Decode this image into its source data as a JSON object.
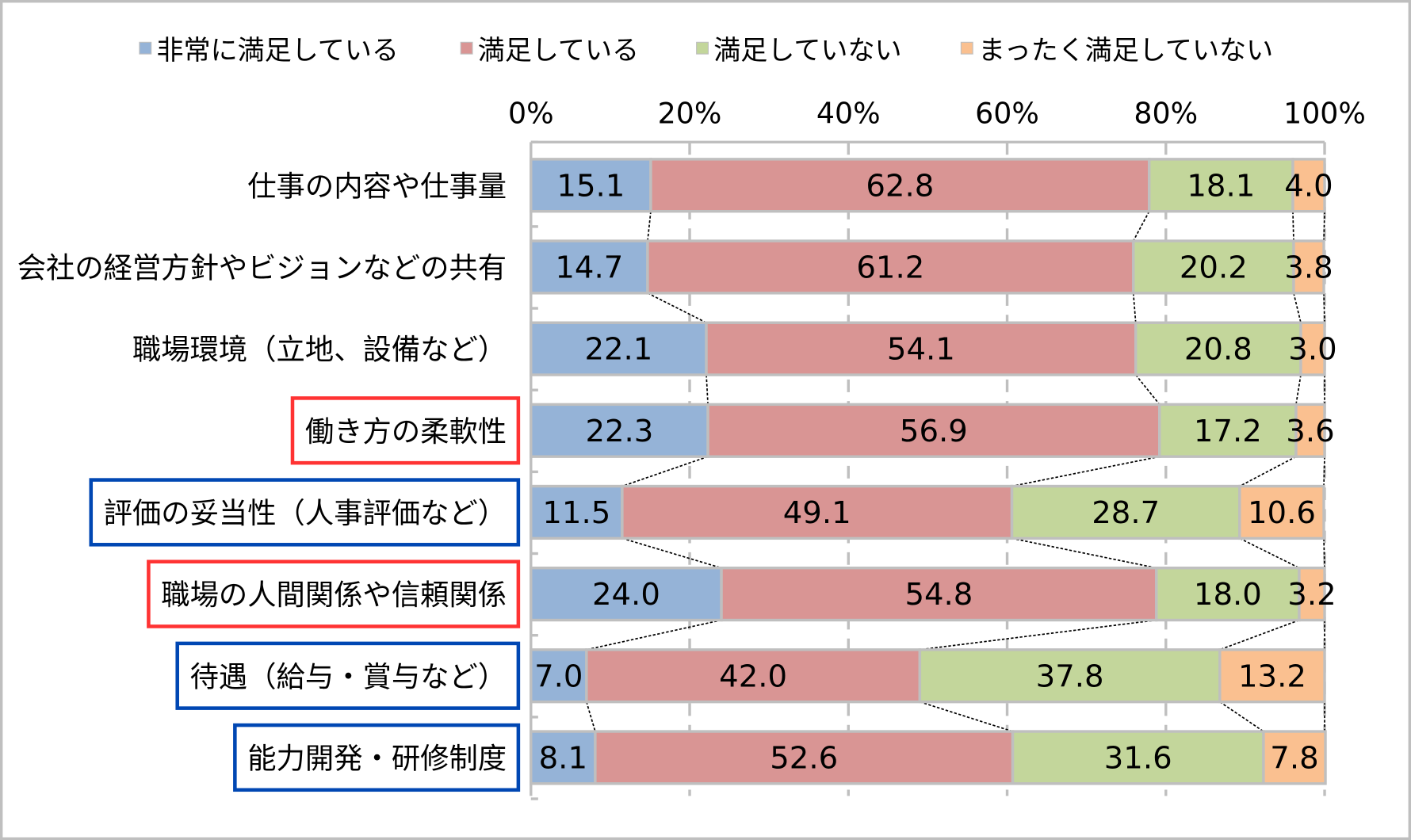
{
  "chart_data": {
    "type": "bar",
    "orientation": "horizontal",
    "stacked": "percent",
    "title": "",
    "xlabel": "",
    "ylabel": "",
    "xlim": [
      0,
      100
    ],
    "x_ticks": [
      "0%",
      "20%",
      "40%",
      "60%",
      "80%",
      "100%"
    ],
    "grid": true,
    "legend_position": "top",
    "categories": [
      "仕事の内容や仕事量",
      "会社の経営方針やビジョンなどの共有",
      "職場環境（立地、設備など）",
      "働き方の柔軟性",
      "評価の妥当性（人事評価など）",
      "職場の人間関係や信頼関係",
      "待遇（給与・賞与など）",
      "能力開発・研修制度"
    ],
    "highlight": [
      "none",
      "none",
      "none",
      "red",
      "blue",
      "red",
      "blue",
      "blue"
    ],
    "highlight_colors": {
      "red": "#ff3333",
      "blue": "#0047b3"
    },
    "series": [
      {
        "name": "非常に満足している",
        "color": "#95b3d7",
        "values": [
          15.1,
          14.7,
          22.1,
          22.3,
          11.5,
          24.0,
          7.0,
          8.1
        ]
      },
      {
        "name": "満足している",
        "color": "#d99594",
        "values": [
          62.8,
          61.2,
          54.1,
          56.9,
          49.1,
          54.8,
          42.0,
          52.6
        ]
      },
      {
        "name": "満足していない",
        "color": "#c3d69b",
        "values": [
          18.1,
          20.2,
          20.8,
          17.2,
          28.7,
          18.0,
          37.8,
          31.6
        ]
      },
      {
        "name": "まったく満足していない",
        "color": "#fac090",
        "values": [
          4.0,
          3.8,
          3.0,
          3.6,
          10.6,
          3.2,
          13.2,
          7.8
        ]
      }
    ]
  }
}
